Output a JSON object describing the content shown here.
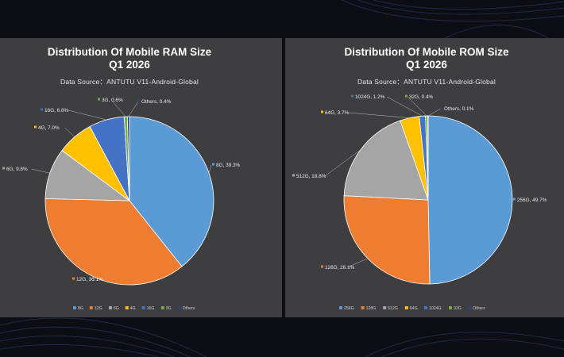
{
  "colors": {
    "blue": "#5b9bd5",
    "orange": "#ed7d31",
    "gray": "#a5a5a5",
    "gold": "#ffc000",
    "darkblue": "#4472c4",
    "green": "#70ad47",
    "navy": "#264478",
    "panel": "#3e3e40",
    "page": "#0b0c14"
  },
  "chart_data": [
    {
      "type": "pie",
      "title": "Distribution Of Mobile RAM Size",
      "subtitle": "Q1 2026",
      "source": "Data Source：ANTUTU V11-Android-Global",
      "categories": [
        "8G",
        "12G",
        "6G",
        "4G",
        "16G",
        "3G",
        "Others"
      ],
      "values": [
        39.3,
        36.1,
        9.8,
        7.0,
        6.8,
        0.6,
        0.4
      ],
      "labels": [
        "8G, 39.3%",
        "12G, 36.1%",
        "6G, 9.8%",
        "4G, 7.0%",
        "16G, 6.8%",
        "3G, 0.6%",
        "Others, 0.4%"
      ],
      "legend": "bottom"
    },
    {
      "type": "pie",
      "title": "Distribution Of Mobile ROM Size",
      "subtitle": "Q1 2026",
      "source": "Data Source：ANTUTU V11-Android-Global",
      "categories": [
        "256G",
        "128G",
        "512G",
        "64G",
        "1024G",
        "32G",
        "Others"
      ],
      "values": [
        49.7,
        26.1,
        18.8,
        3.7,
        1.2,
        0.4,
        0.1
      ],
      "labels": [
        "256G, 49.7%",
        "128G, 26.1%",
        "512G, 18.8%",
        "64G, 3.7%",
        "1024G, 1.2%",
        "32G, 0.4%",
        "Others, 0.1%"
      ],
      "legend": "bottom"
    }
  ]
}
